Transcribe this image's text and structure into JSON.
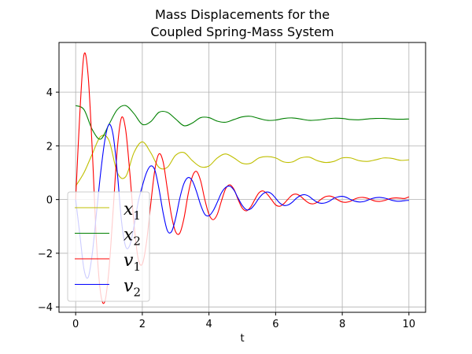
{
  "chart_data": {
    "type": "line",
    "title": [
      "Mass Displacements for the",
      "Coupled Spring-Mass System"
    ],
    "xlabel": "t",
    "ylabel": "",
    "xlim": [
      -0.5,
      10.5
    ],
    "ylim": [
      -4.2,
      5.85
    ],
    "xticks": [
      0,
      2,
      4,
      6,
      8,
      10
    ],
    "yticks": [
      -4,
      -2,
      0,
      2,
      4
    ],
    "grid": true,
    "legend": {
      "placement": "lower-left"
    },
    "series": [
      {
        "name": "x",
        "sub": "1",
        "color": "#bfbf00",
        "x": [
          0,
          0.25,
          0.5,
          0.75,
          1,
          1.25,
          1.5,
          1.75,
          2,
          2.25,
          2.5,
          2.75,
          3,
          3.25,
          3.5,
          3.75,
          4,
          4.25,
          4.5,
          4.75,
          5,
          5.25,
          5.5,
          5.75,
          6,
          6.25,
          6.5,
          6.75,
          7,
          7.25,
          7.5,
          7.75,
          8,
          8.25,
          8.5,
          8.75,
          9,
          9.25,
          9.5,
          9.75,
          10
        ],
        "y": [
          0.5,
          1.0,
          1.7,
          2.35,
          2.2,
          1.0,
          0.85,
          1.75,
          2.15,
          1.75,
          1.2,
          1.2,
          1.65,
          1.75,
          1.45,
          1.22,
          1.25,
          1.55,
          1.7,
          1.55,
          1.35,
          1.35,
          1.55,
          1.6,
          1.55,
          1.4,
          1.4,
          1.55,
          1.58,
          1.45,
          1.38,
          1.42,
          1.55,
          1.55,
          1.45,
          1.42,
          1.48,
          1.55,
          1.53,
          1.46,
          1.48
        ]
      },
      {
        "name": "x",
        "sub": "2",
        "color": "#008000",
        "x": [
          0,
          0.25,
          0.5,
          0.75,
          1,
          1.25,
          1.5,
          1.75,
          2,
          2.25,
          2.5,
          2.75,
          3,
          3.25,
          3.5,
          3.75,
          4,
          4.25,
          4.5,
          4.75,
          5,
          5.25,
          5.5,
          5.75,
          6,
          6.25,
          6.5,
          6.75,
          7,
          7.25,
          7.5,
          7.75,
          8,
          8.25,
          8.5,
          8.75,
          9,
          9.25,
          9.5,
          9.75,
          10
        ],
        "y": [
          3.5,
          3.35,
          2.6,
          2.25,
          2.8,
          3.35,
          3.5,
          3.2,
          2.8,
          2.9,
          3.25,
          3.25,
          3.0,
          2.75,
          2.85,
          3.05,
          3.05,
          2.92,
          2.88,
          2.98,
          3.08,
          3.1,
          3.02,
          2.95,
          2.96,
          3.02,
          3.04,
          3.0,
          2.95,
          2.96,
          3.0,
          3.03,
          3.02,
          2.98,
          2.97,
          3.0,
          3.02,
          3.02,
          3.0,
          2.99,
          3.0
        ]
      },
      {
        "name": "v",
        "sub": "1",
        "color": "#ff0000",
        "x": [
          0,
          0.125,
          0.25,
          0.375,
          0.5,
          0.625,
          0.75,
          0.875,
          1,
          1.125,
          1.25,
          1.375,
          1.5,
          1.625,
          1.75,
          1.875,
          2,
          2.125,
          2.25,
          2.375,
          2.5,
          2.625,
          2.75,
          2.875,
          3,
          3.125,
          3.25,
          3.375,
          3.5,
          3.625,
          3.75,
          3.875,
          4,
          4.125,
          4.25,
          4.375,
          4.5,
          4.625,
          4.75,
          4.875,
          5,
          5.125,
          5.25,
          5.375,
          5.5,
          5.625,
          5.75,
          5.875,
          6,
          6.125,
          6.25,
          6.375,
          6.5,
          6.625,
          6.75,
          6.875,
          7,
          7.125,
          7.25,
          7.375,
          7.5,
          7.625,
          7.75,
          7.875,
          8,
          8.125,
          8.25,
          8.375,
          8.5,
          8.625,
          8.75,
          8.875,
          9,
          9.125,
          9.25,
          9.375,
          9.5,
          9.625,
          9.75,
          9.875,
          10
        ],
        "y": [
          0,
          3.2,
          5.4,
          4.6,
          1.8,
          -1.6,
          -3.5,
          -3.8,
          -2.6,
          -0.4,
          1.9,
          3.05,
          2.6,
          1.0,
          -0.9,
          -2.2,
          -2.4,
          -1.6,
          -0.2,
          1.1,
          1.7,
          1.4,
          0.4,
          -0.6,
          -1.2,
          -1.25,
          -0.7,
          0.2,
          0.85,
          1.05,
          0.7,
          0.0,
          -0.55,
          -0.75,
          -0.55,
          -0.05,
          0.4,
          0.55,
          0.38,
          0.0,
          -0.32,
          -0.42,
          -0.28,
          0.0,
          0.25,
          0.32,
          0.2,
          0.0,
          -0.2,
          -0.25,
          -0.15,
          0.02,
          0.17,
          0.2,
          0.12,
          -0.02,
          -0.13,
          -0.16,
          -0.1,
          0.02,
          0.11,
          0.13,
          0.08,
          -0.02,
          -0.09,
          -0.1,
          -0.06,
          0.02,
          0.07,
          0.08,
          0.05,
          -0.01,
          -0.06,
          -0.07,
          -0.04,
          0.01,
          0.05,
          0.06,
          0.05,
          0.04,
          0.1
        ]
      },
      {
        "name": "v",
        "sub": "2",
        "color": "#0000ff",
        "x": [
          0,
          0.125,
          0.25,
          0.375,
          0.5,
          0.625,
          0.75,
          0.875,
          1,
          1.125,
          1.25,
          1.375,
          1.5,
          1.625,
          1.75,
          1.875,
          2,
          2.125,
          2.25,
          2.375,
          2.5,
          2.625,
          2.75,
          2.875,
          3,
          3.125,
          3.25,
          3.375,
          3.5,
          3.625,
          3.75,
          3.875,
          4,
          4.125,
          4.25,
          4.375,
          4.5,
          4.625,
          4.75,
          4.875,
          5,
          5.125,
          5.25,
          5.375,
          5.5,
          5.625,
          5.75,
          5.875,
          6,
          6.125,
          6.25,
          6.375,
          6.5,
          6.625,
          6.75,
          6.875,
          7,
          7.125,
          7.25,
          7.375,
          7.5,
          7.625,
          7.75,
          7.875,
          8,
          8.125,
          8.25,
          8.375,
          8.5,
          8.625,
          8.75,
          8.875,
          9,
          9.125,
          9.25,
          9.375,
          9.5,
          9.625,
          9.75,
          9.875,
          10
        ],
        "y": [
          0,
          -1.3,
          -2.6,
          -2.9,
          -2.0,
          -0.5,
          1.0,
          2.2,
          2.8,
          2.4,
          1.0,
          -0.8,
          -1.75,
          -1.7,
          -1.0,
          -0.1,
          0.5,
          1.0,
          1.25,
          1.1,
          0.4,
          -0.5,
          -1.15,
          -1.2,
          -0.7,
          0.05,
          0.6,
          0.82,
          0.7,
          0.3,
          -0.2,
          -0.55,
          -0.6,
          -0.42,
          -0.1,
          0.25,
          0.45,
          0.5,
          0.35,
          0.05,
          -0.22,
          -0.38,
          -0.35,
          -0.18,
          0.05,
          0.22,
          0.28,
          0.22,
          0.05,
          -0.13,
          -0.22,
          -0.2,
          -0.1,
          0.05,
          0.15,
          0.18,
          0.12,
          0.0,
          -0.1,
          -0.14,
          -0.12,
          -0.05,
          0.05,
          0.1,
          0.12,
          0.08,
          0.0,
          -0.06,
          -0.09,
          -0.08,
          -0.03,
          0.03,
          0.07,
          0.08,
          0.06,
          0.02,
          -0.03,
          -0.06,
          -0.06,
          -0.04,
          -0.03
        ]
      }
    ]
  }
}
